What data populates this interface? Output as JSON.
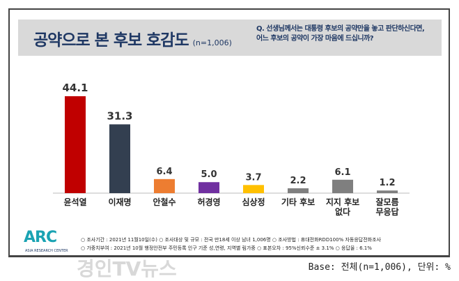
{
  "header": {
    "title": "공약으로 본 후보 호감도",
    "sample": "(n=1,006)",
    "question_line1": "Q. 선생님께서는 대통령 후보의 공약만을 놓고 판단하신다면,",
    "question_line2": "어느 후보의 공약이 가장 마음에 드십니까?"
  },
  "chart_data": {
    "type": "bar",
    "title": "공약으로 본 후보 호감도",
    "categories": [
      "윤석열",
      "이재명",
      "안철수",
      "허경영",
      "심상정",
      "기타 후보",
      "지지 후보\n없다",
      "잘모름\n무응답"
    ],
    "values": [
      44.1,
      31.3,
      6.4,
      5.0,
      3.7,
      2.2,
      6.1,
      1.2
    ],
    "labels": [
      "44.1",
      "31.3",
      "6.4",
      "5.0",
      "3.7",
      "2.2",
      "6.1",
      "1.2"
    ],
    "colors": [
      "#c00000",
      "#333f50",
      "#ed7d31",
      "#7030a0",
      "#ffc000",
      "#7f7f7f",
      "#7f7f7f",
      "#7f7f7f"
    ],
    "ylim": [
      0,
      50
    ],
    "unit": "%"
  },
  "footer": {
    "logo": "ARC",
    "logo_sub": "ASIA RESEARCH CENTER",
    "note1": "○ 조사기간 : 2021년 11월10일(수)   ○ 조사대상 및 규모 : 전국 만18세 이상 남녀 1,006명   ○ 조사방법 : 휴대전화RDD100% 자동응답전화조사",
    "note2": "○ 가중치부여 : 2021년 10월 행정안전부 주민등록 인구 기준 성,연령, 지역별 림가중   ○ 표본오차 : 95%신뢰수준 ± 3.1%   ○ 응답율 : 6.1%",
    "base": "Base: 전체(n=1,006), 단위: %",
    "watermark": "경인TV뉴스"
  }
}
